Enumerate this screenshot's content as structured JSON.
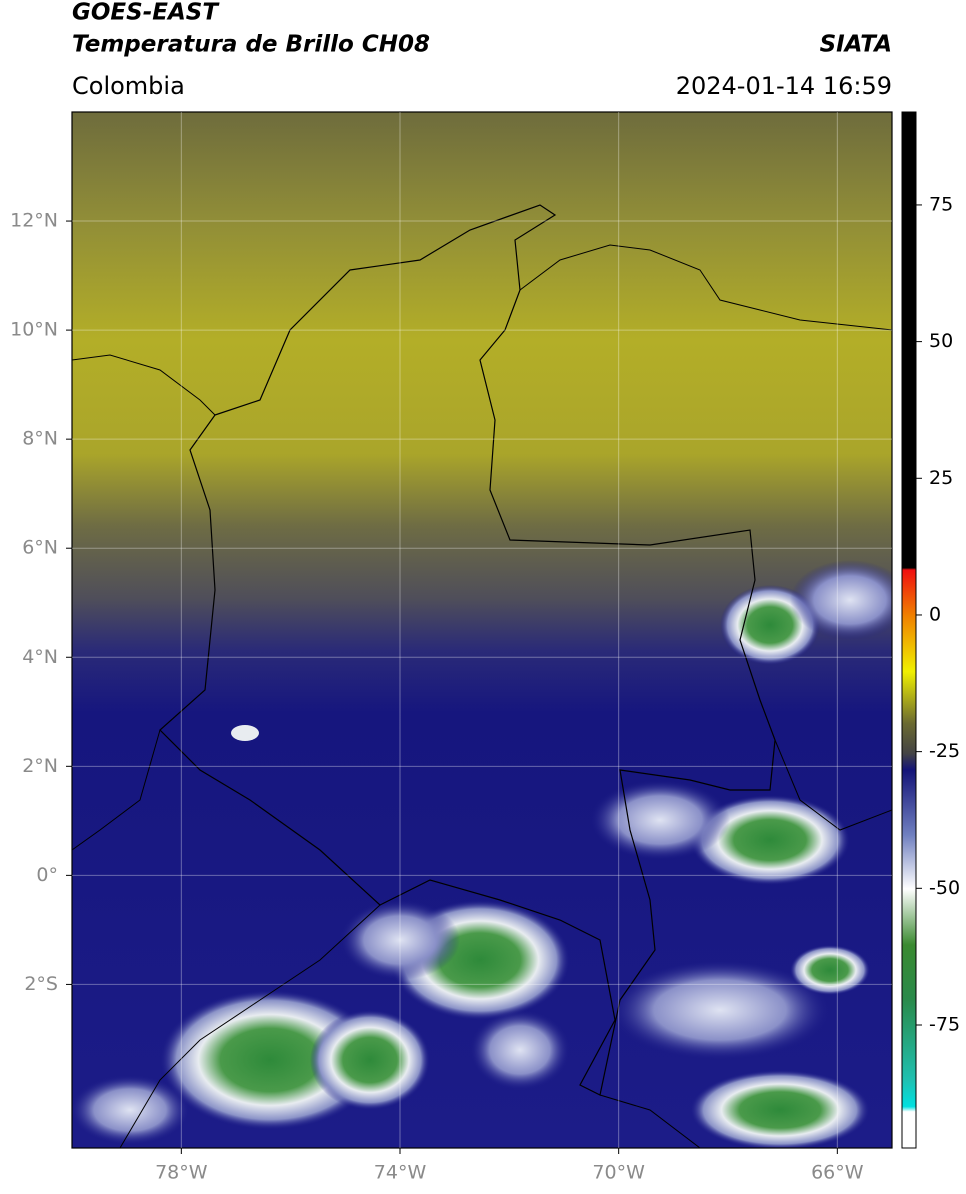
{
  "chart_data": {
    "type": "map",
    "title": "GOES-EAST",
    "subtitle": "Temperatura de Brillo CH08",
    "source": "SIATA",
    "region": "Colombia",
    "datetime": "2024-01-14 16:59",
    "xlim": [
      -80,
      -65
    ],
    "ylim": [
      -5,
      14
    ],
    "xticks": [
      {
        "value": -78,
        "label": "78°W"
      },
      {
        "value": -74,
        "label": "74°W"
      },
      {
        "value": -70,
        "label": "70°W"
      },
      {
        "value": -66,
        "label": "66°W"
      }
    ],
    "yticks": [
      {
        "value": 12,
        "label": "12°N"
      },
      {
        "value": 10,
        "label": "10°N"
      },
      {
        "value": 8,
        "label": "8°N"
      },
      {
        "value": 6,
        "label": "6°N"
      },
      {
        "value": 4,
        "label": "4°N"
      },
      {
        "value": 2,
        "label": "2°N"
      },
      {
        "value": 0,
        "label": "0°"
      },
      {
        "value": -2,
        "label": "2°S"
      }
    ],
    "grid": true,
    "colorbar": {
      "lim": [
        -97.5,
        92
      ],
      "ticks": [
        75,
        50,
        25,
        0,
        -25,
        -50,
        -75
      ]
    }
  }
}
